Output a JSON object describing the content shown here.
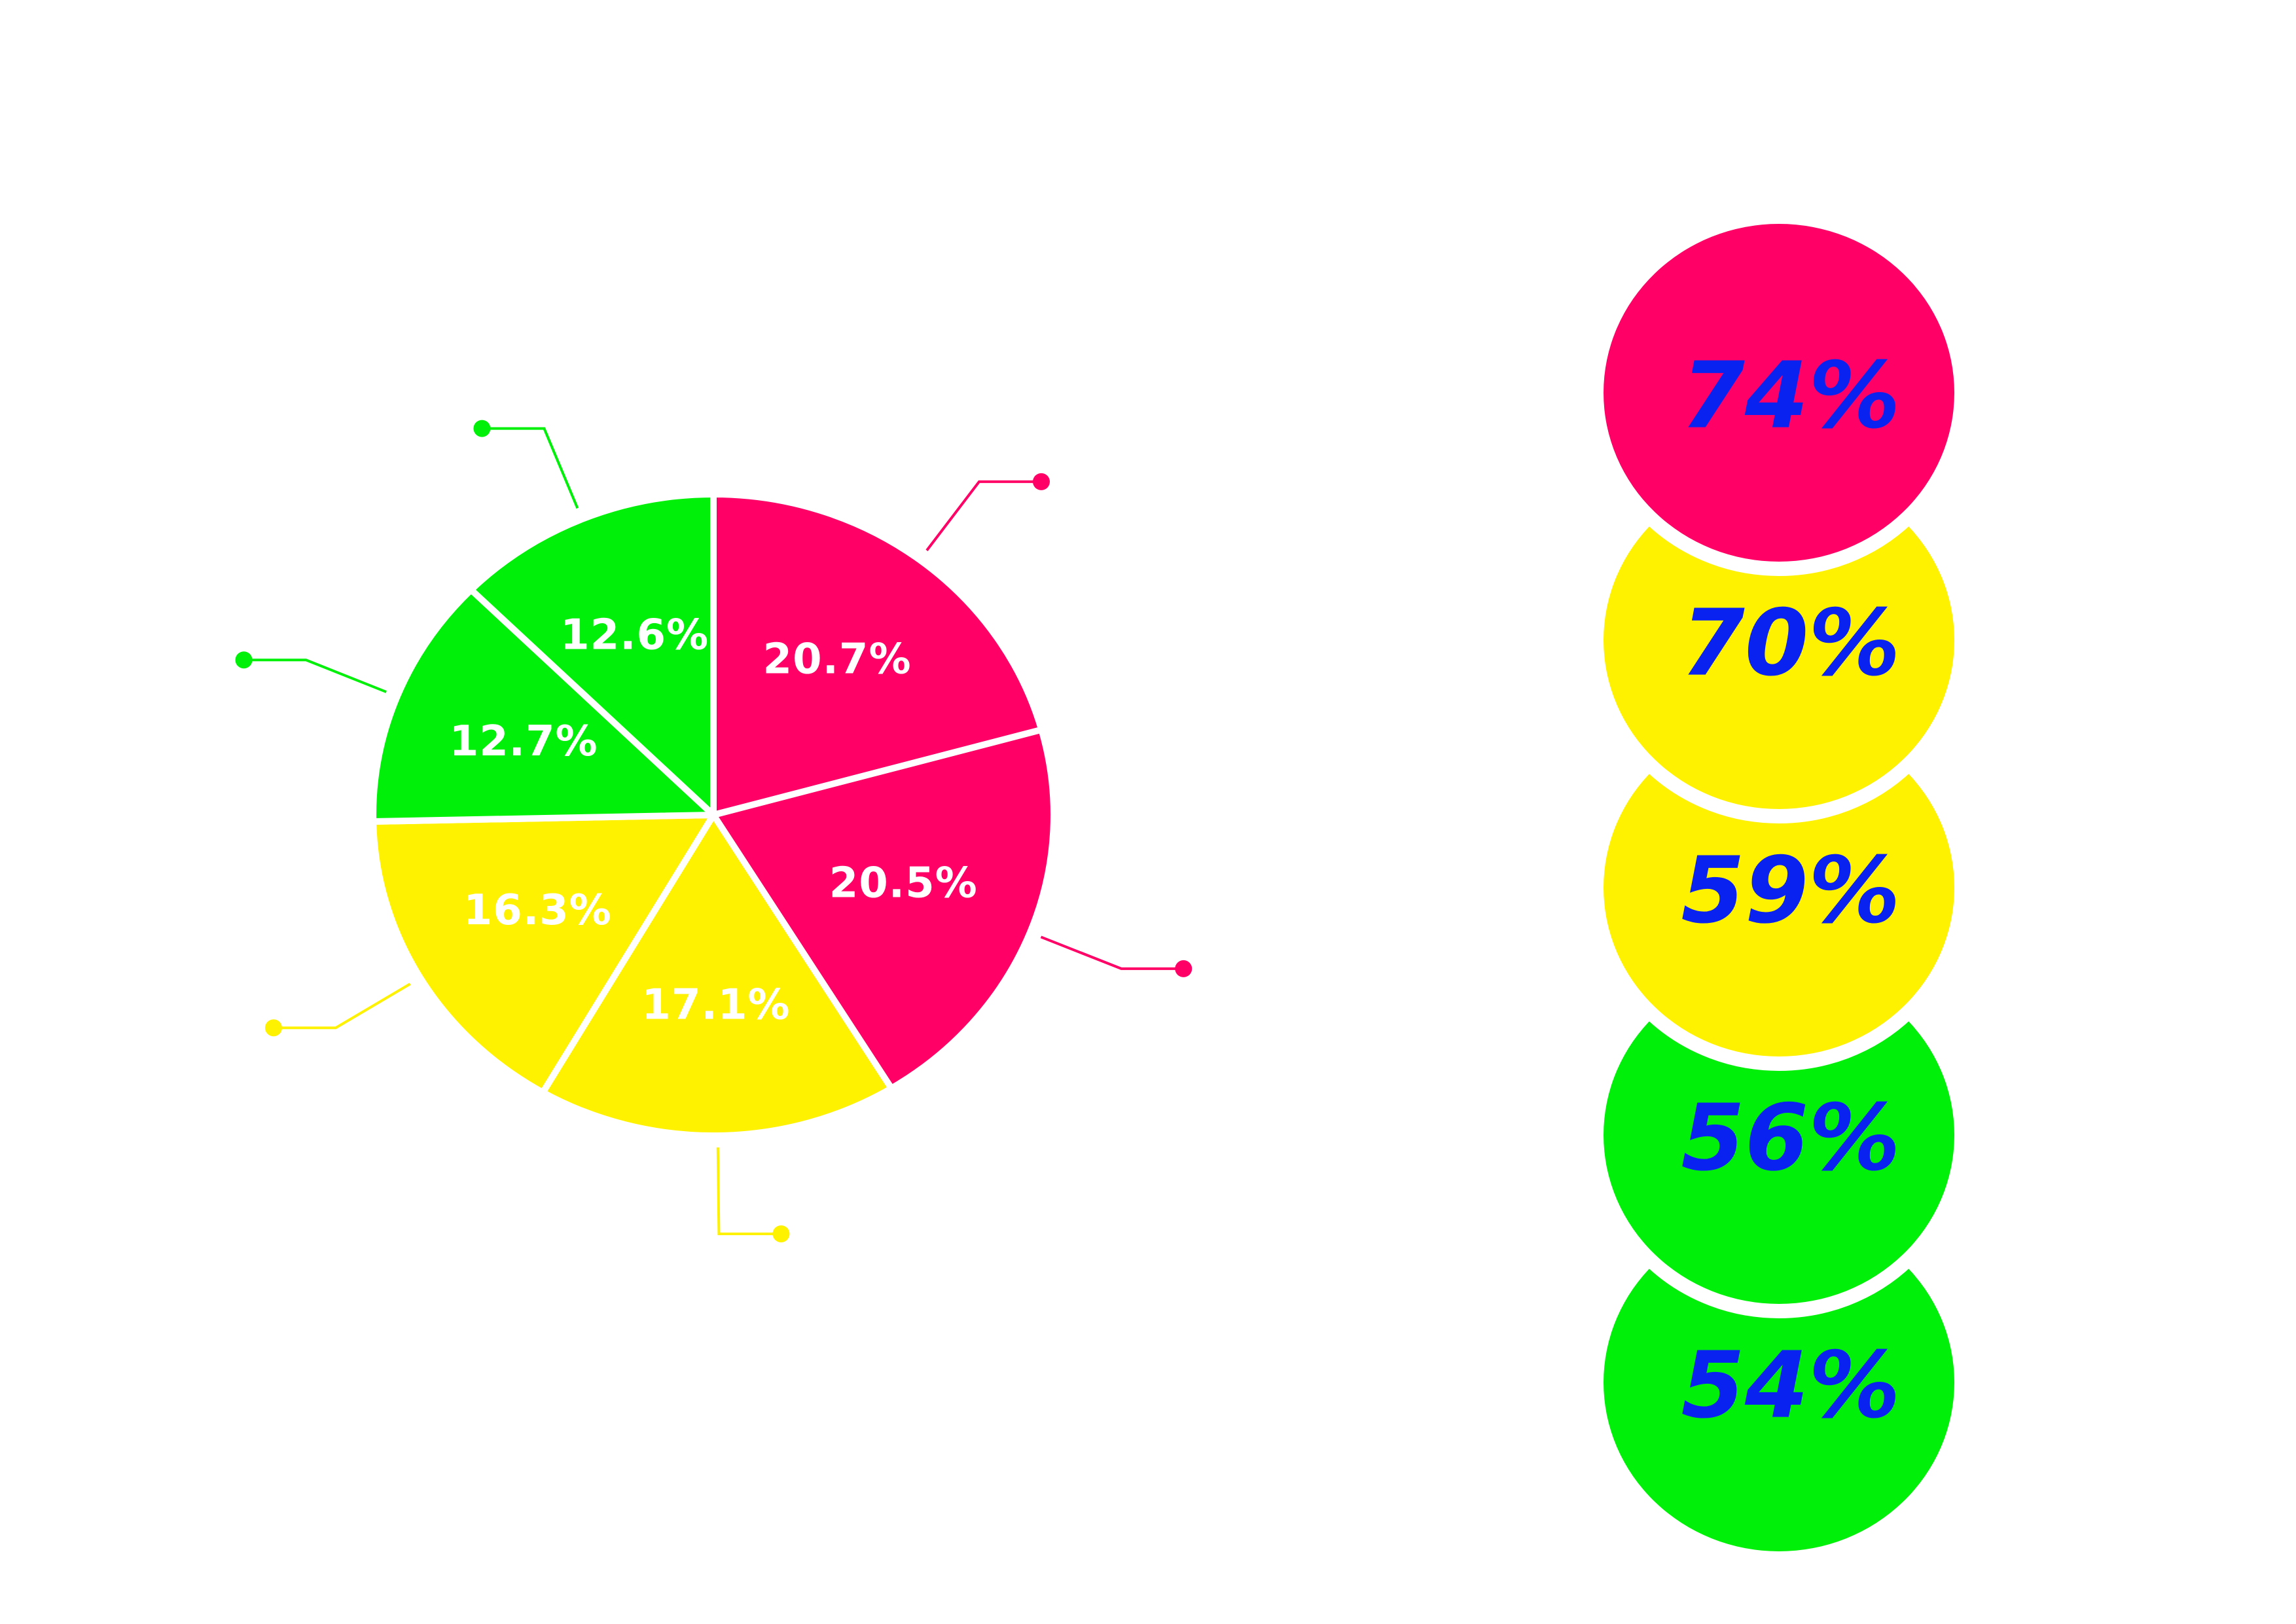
{
  "colors": {
    "pink": "#FF0066",
    "yellow": "#FFF200",
    "green": "#00F00A",
    "label_text": "#FFFFFF",
    "bubble_text": "#0A22F0",
    "background": "#FFFFFF"
  },
  "chart_data": [
    {
      "type": "pie",
      "title": "",
      "slices": [
        {
          "label": "20.7%",
          "value": 20.7,
          "color": "#FF0066"
        },
        {
          "label": "20.5%",
          "value": 20.5,
          "color": "#FF0066"
        },
        {
          "label": "17.1%",
          "value": 17.1,
          "color": "#FFF200"
        },
        {
          "label": "16.3%",
          "value": 16.3,
          "color": "#FFF200"
        },
        {
          "label": "12.7%",
          "value": 12.7,
          "color": "#00F00A"
        },
        {
          "label": "12.6%",
          "value": 12.6,
          "color": "#00F00A"
        }
      ],
      "legend": "none"
    },
    {
      "type": "bubble_stack",
      "title": "",
      "items": [
        {
          "label": "74%",
          "value": 74,
          "color": "#FF0066"
        },
        {
          "label": "70%",
          "value": 70,
          "color": "#FFF200"
        },
        {
          "label": "59%",
          "value": 59,
          "color": "#FFF200"
        },
        {
          "label": "56%",
          "value": 56,
          "color": "#00F00A"
        },
        {
          "label": "54%",
          "value": 54,
          "color": "#00F00A"
        }
      ]
    }
  ]
}
